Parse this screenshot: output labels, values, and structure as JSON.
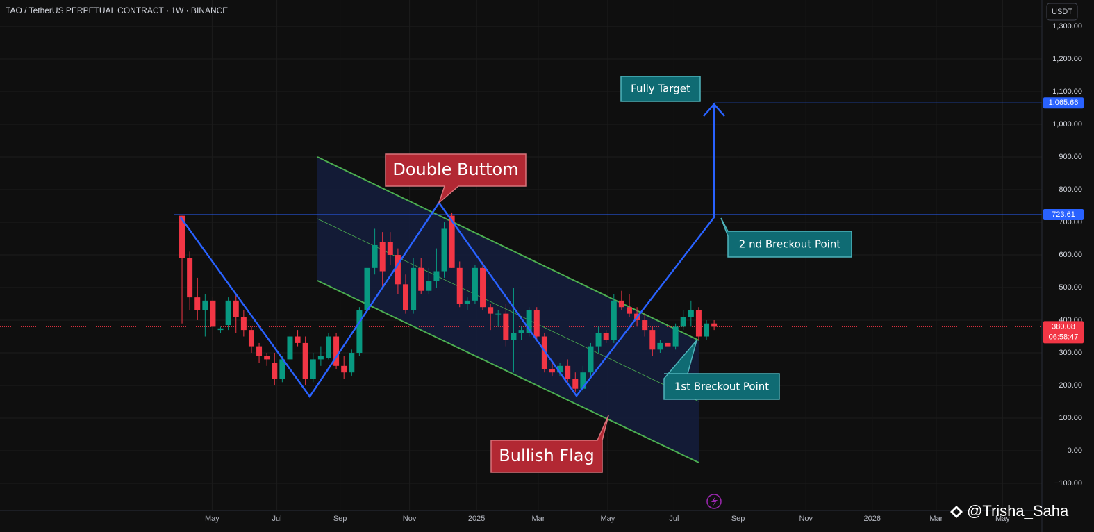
{
  "chart_data": {
    "type": "candlestick",
    "title": "TAO / TetherUS PERPETUAL CONTRACT · 1W · BINANCE",
    "currency": "USDT",
    "open": [
      720,
      590,
      470,
      430,
      460,
      370,
      385,
      460,
      410,
      370,
      320,
      290,
      270,
      220,
      280,
      350,
      330,
      220,
      280,
      285,
      350,
      260,
      240,
      300,
      430,
      560,
      640,
      640,
      600,
      510,
      430,
      560,
      490,
      520,
      550,
      720,
      560,
      450,
      460,
      560,
      440,
      420,
      420,
      340,
      360,
      360,
      430,
      350,
      250,
      240,
      260,
      220,
      190,
      240,
      320,
      360,
      340,
      460,
      440,
      420,
      400,
      370,
      310,
      330,
      320,
      380,
      410,
      430,
      350,
      390
    ],
    "high": [
      720,
      610,
      530,
      480,
      470,
      380,
      470,
      480,
      430,
      380,
      330,
      300,
      300,
      290,
      360,
      370,
      350,
      300,
      320,
      360,
      360,
      290,
      310,
      440,
      600,
      680,
      670,
      670,
      620,
      540,
      590,
      590,
      560,
      620,
      700,
      730,
      580,
      470,
      570,
      580,
      450,
      430,
      450,
      500,
      380,
      440,
      440,
      360,
      270,
      270,
      280,
      240,
      260,
      330,
      380,
      370,
      480,
      490,
      480,
      440,
      420,
      380,
      340,
      340,
      390,
      430,
      460,
      440,
      400,
      400
    ],
    "low": [
      390,
      430,
      400,
      350,
      340,
      360,
      370,
      360,
      350,
      300,
      270,
      260,
      200,
      210,
      270,
      320,
      200,
      210,
      260,
      280,
      250,
      220,
      230,
      290,
      420,
      540,
      500,
      570,
      480,
      420,
      420,
      480,
      480,
      500,
      530,
      560,
      440,
      430,
      450,
      430,
      370,
      380,
      320,
      240,
      340,
      350,
      340,
      240,
      230,
      230,
      210,
      180,
      180,
      230,
      300,
      330,
      330,
      430,
      410,
      380,
      350,
      290,
      300,
      310,
      310,
      370,
      380,
      340,
      340,
      370
    ],
    "close": [
      590,
      470,
      430,
      460,
      380,
      375,
      460,
      410,
      370,
      320,
      290,
      280,
      220,
      280,
      350,
      330,
      220,
      280,
      290,
      350,
      260,
      240,
      300,
      430,
      560,
      630,
      550,
      600,
      510,
      430,
      560,
      490,
      520,
      550,
      680,
      560,
      450,
      460,
      560,
      440,
      420,
      420,
      340,
      360,
      370,
      430,
      350,
      250,
      240,
      260,
      220,
      190,
      240,
      320,
      360,
      340,
      460,
      440,
      420,
      400,
      370,
      310,
      330,
      320,
      380,
      410,
      430,
      350,
      390,
      380
    ],
    "up_color": "#089981",
    "down_color": "#f23645",
    "xlim": [
      -23.6,
      111.5
    ],
    "xticks": [
      {
        "value": 3.9,
        "label": "May"
      },
      {
        "value": 12.3,
        "label": "Jul"
      },
      {
        "value": 20.5,
        "label": "Sep"
      },
      {
        "value": 29.5,
        "label": "Nov"
      },
      {
        "value": 38.2,
        "label": "2025"
      },
      {
        "value": 46.2,
        "label": "Mar"
      },
      {
        "value": 55.2,
        "label": "May"
      },
      {
        "value": 63.8,
        "label": "Jul"
      },
      {
        "value": 72.1,
        "label": "Sep"
      },
      {
        "value": 80.9,
        "label": "Nov"
      },
      {
        "value": 89.5,
        "label": "2026"
      },
      {
        "value": 97.8,
        "label": "Mar"
      },
      {
        "value": 106.4,
        "label": "May"
      }
    ],
    "ylim": [
      -183,
      1381
    ],
    "yticks": [
      {
        "value": -100,
        "label": "−100.00"
      },
      {
        "value": 0,
        "label": "0.00"
      },
      {
        "value": 100,
        "label": "100.00"
      },
      {
        "value": 200,
        "label": "200.00"
      },
      {
        "value": 300,
        "label": "300.00"
      },
      {
        "value": 400,
        "label": "400.00"
      },
      {
        "value": 500,
        "label": "500.00"
      },
      {
        "value": 600,
        "label": "600.00"
      },
      {
        "value": 700,
        "label": "700.00"
      },
      {
        "value": 800,
        "label": "800.00"
      },
      {
        "value": 900,
        "label": "900.00"
      },
      {
        "value": 1000,
        "label": "1,000.00"
      },
      {
        "value": 1100,
        "label": "1,100.00"
      },
      {
        "value": 1200,
        "label": "1,200.00"
      },
      {
        "value": 1300,
        "label": "1,300.00"
      }
    ],
    "grid": true,
    "price_lines": [
      {
        "value": {
          "value": 1065.66,
          "label": "1,065.66"
        },
        "color": "#2962ff"
      },
      {
        "value": 723.61,
        "color": "#2962ff"
      }
    ],
    "last_price": 380.08,
    "countdown": "06:58:47",
    "annotations": [
      {
        "text": "Double Buttom"
      },
      {
        "text": "Bullish Flag"
      },
      {
        "text": "Fully Target"
      },
      {
        "text": "2 nd Breckout Point"
      },
      {
        "text": "1st Breckout Point"
      }
    ],
    "watermark": "@Trisha_Saha"
  }
}
